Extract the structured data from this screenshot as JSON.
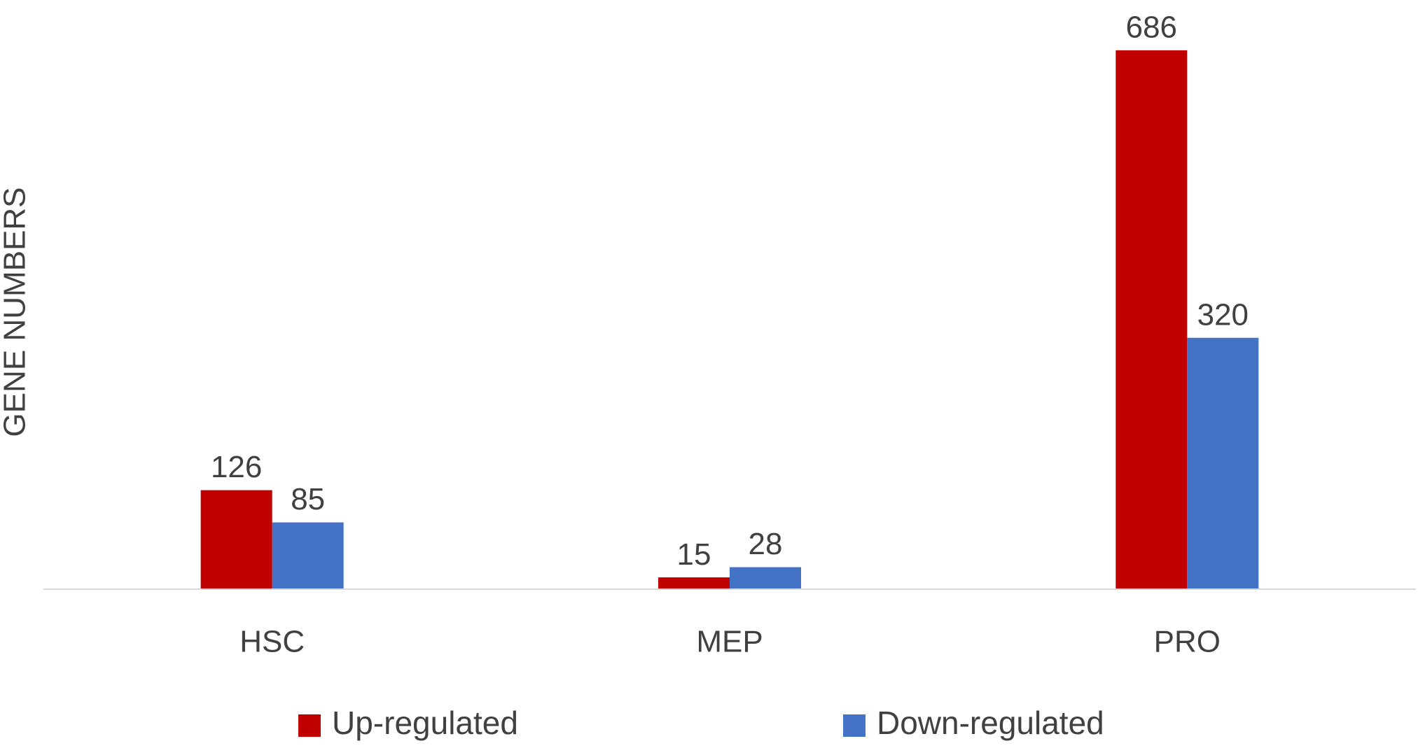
{
  "chart_data": {
    "type": "bar",
    "y_label": "GENE NUMBERS",
    "categories": [
      "HSC",
      "MEP",
      "PRO"
    ],
    "series": [
      {
        "name": "Up-regulated",
        "color": "#c00000",
        "values": [
          126,
          15,
          686
        ]
      },
      {
        "name": "Down-regulated",
        "color": "#4472c4",
        "values": [
          85,
          28,
          320
        ]
      }
    ],
    "ylim": [
      0,
      750
    ],
    "grid": false
  }
}
